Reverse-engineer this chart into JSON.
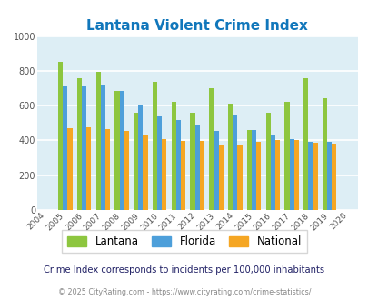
{
  "title": "Lantana Violent Crime Index",
  "years": [
    2004,
    2005,
    2006,
    2007,
    2008,
    2009,
    2010,
    2011,
    2012,
    2013,
    2014,
    2015,
    2016,
    2017,
    2018,
    2019,
    2020
  ],
  "lantana": [
    null,
    850,
    760,
    795,
    685,
    560,
    735,
    620,
    560,
    700,
    610,
    460,
    560,
    620,
    760,
    645,
    null
  ],
  "florida": [
    null,
    710,
    710,
    720,
    685,
    608,
    540,
    515,
    490,
    455,
    545,
    460,
    430,
    405,
    390,
    390,
    null
  ],
  "national": [
    null,
    468,
    475,
    467,
    457,
    432,
    405,
    397,
    397,
    372,
    377,
    394,
    400,
    401,
    387,
    383,
    null
  ],
  "ylim": [
    0,
    1000
  ],
  "yticks": [
    0,
    200,
    400,
    600,
    800,
    1000
  ],
  "bar_width": 0.25,
  "colors": {
    "lantana": "#8dc63f",
    "florida": "#4d9fda",
    "national": "#f5a623"
  },
  "bg_color": "#ddeef5",
  "grid_color": "#ffffff",
  "subtitle": "Crime Index corresponds to incidents per 100,000 inhabitants",
  "footer": "© 2025 CityRating.com - https://www.cityrating.com/crime-statistics/",
  "title_color": "#1177bb",
  "subtitle_color": "#222266",
  "footer_color": "#888888",
  "legend_labels": [
    "Lantana",
    "Florida",
    "National"
  ]
}
